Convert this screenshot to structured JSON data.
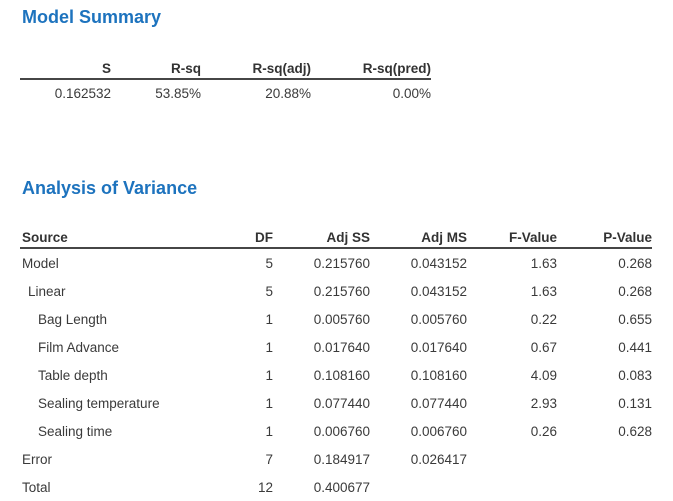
{
  "colors": {
    "heading_blue": "#1d73be",
    "body_text": "#3a3a3a",
    "rule_dark": "#464646",
    "background": "#ffffff"
  },
  "model_summary": {
    "title": "Model Summary",
    "columns": {
      "s": "S",
      "r_sq": "R-sq",
      "r_sq_adj": "R-sq(adj)",
      "r_sq_pred": "R-sq(pred)"
    },
    "row": {
      "s": "0.162532",
      "r_sq": "53.85%",
      "r_sq_adj": "20.88%",
      "r_sq_pred": "0.00%"
    }
  },
  "anova": {
    "title": "Analysis of Variance",
    "columns": {
      "source": "Source",
      "df": "DF",
      "adj_ss": "Adj SS",
      "adj_ms": "Adj MS",
      "f_value": "F-Value",
      "p_value": "P-Value"
    },
    "rows": [
      {
        "source": "Model",
        "indent": 0,
        "df": "5",
        "adj_ss": "0.215760",
        "adj_ms": "0.043152",
        "f_value": "1.63",
        "p_value": "0.268"
      },
      {
        "source": "Linear",
        "indent": 1,
        "df": "5",
        "adj_ss": "0.215760",
        "adj_ms": "0.043152",
        "f_value": "1.63",
        "p_value": "0.268"
      },
      {
        "source": "Bag Length",
        "indent": 2,
        "df": "1",
        "adj_ss": "0.005760",
        "adj_ms": "0.005760",
        "f_value": "0.22",
        "p_value": "0.655"
      },
      {
        "source": "Film Advance",
        "indent": 2,
        "df": "1",
        "adj_ss": "0.017640",
        "adj_ms": "0.017640",
        "f_value": "0.67",
        "p_value": "0.441"
      },
      {
        "source": "Table depth",
        "indent": 2,
        "df": "1",
        "adj_ss": "0.108160",
        "adj_ms": "0.108160",
        "f_value": "4.09",
        "p_value": "0.083"
      },
      {
        "source": "Sealing temperature",
        "indent": 2,
        "df": "1",
        "adj_ss": "0.077440",
        "adj_ms": "0.077440",
        "f_value": "2.93",
        "p_value": "0.131"
      },
      {
        "source": "Sealing time",
        "indent": 2,
        "df": "1",
        "adj_ss": "0.006760",
        "adj_ms": "0.006760",
        "f_value": "0.26",
        "p_value": "0.628"
      },
      {
        "source": "Error",
        "indent": 0,
        "df": "7",
        "adj_ss": "0.184917",
        "adj_ms": "0.026417",
        "f_value": "",
        "p_value": ""
      },
      {
        "source": "Total",
        "indent": 0,
        "df": "12",
        "adj_ss": "0.400677",
        "adj_ms": "",
        "f_value": "",
        "p_value": ""
      }
    ]
  }
}
